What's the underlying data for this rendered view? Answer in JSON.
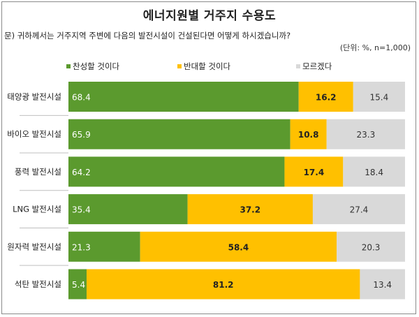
{
  "chart_data": {
    "type": "bar",
    "orientation": "horizontal",
    "stacked": true,
    "percent_stacked": true,
    "title": "에너지원별 거주지 수용도",
    "question": "문) 귀하께서는 거주지역 주변에 다음의 발전시설이 건설된다면 어떻게 하시겠습니까?",
    "unit_note": "(단위: %, n=1,000)",
    "categories": [
      "태양광 발전시설",
      "바이오 발전시설",
      "풍력 발전시설",
      "LNG 발전시설",
      "원자력 발전시설",
      "석탄 발전시설"
    ],
    "series": [
      {
        "name": "찬성할 것이다",
        "color": "#5b9a2e",
        "values": [
          68.4,
          65.9,
          64.2,
          35.4,
          21.3,
          5.4
        ]
      },
      {
        "name": "반대할 것이다",
        "color": "#ffc000",
        "values": [
          16.2,
          10.8,
          17.4,
          37.2,
          58.4,
          81.2
        ]
      },
      {
        "name": "모르겠다",
        "color": "#d9d9d9",
        "values": [
          15.4,
          23.3,
          18.4,
          27.4,
          20.3,
          13.4
        ]
      }
    ],
    "legend_position": "top-right",
    "xlim": [
      0,
      100
    ],
    "grid": false
  }
}
